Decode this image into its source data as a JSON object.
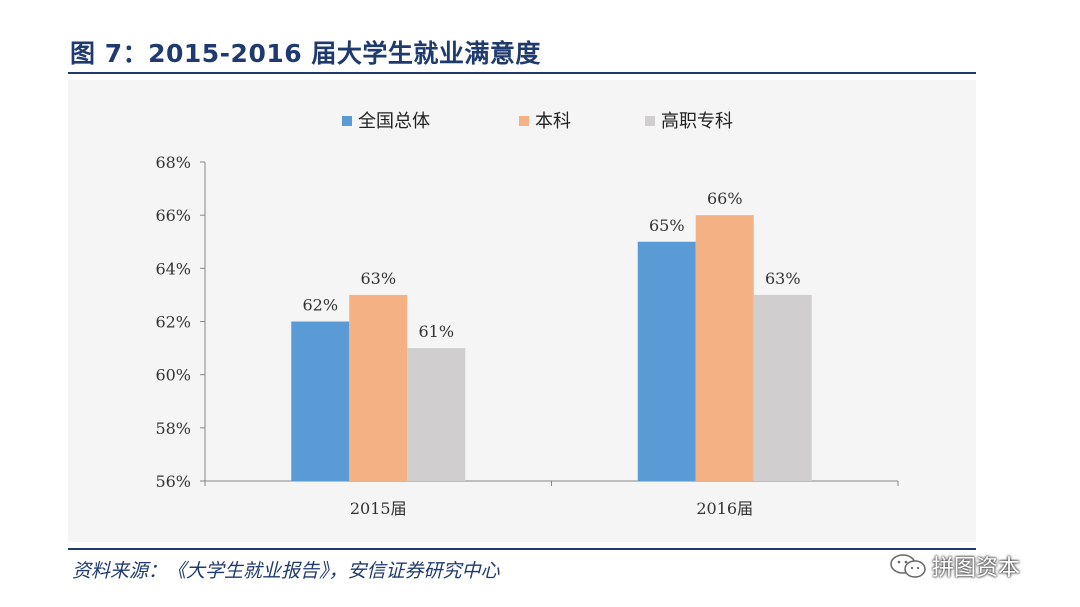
{
  "header": {
    "title": "图 7：2015-2016 届大学生就业满意度"
  },
  "footer": {
    "source": "资料来源：《大学生就业报告》，安信证券研究中心",
    "watermark": "拼图资本"
  },
  "chart_data": {
    "type": "bar",
    "title": "",
    "categories": [
      "2015届",
      "2016届"
    ],
    "series": [
      {
        "name": "全国总体",
        "values": [
          62,
          65
        ],
        "labels": [
          "62%",
          "65%"
        ],
        "color": "#5b9bd5"
      },
      {
        "name": "本科",
        "values": [
          63,
          66
        ],
        "labels": [
          "63%",
          "66%"
        ],
        "color": "#f4b183"
      },
      {
        "name": "高职专科",
        "values": [
          61,
          63
        ],
        "labels": [
          "61%",
          "63%"
        ],
        "color": "#d0cece"
      }
    ],
    "ylim": [
      56,
      68
    ],
    "yticks": [
      56,
      58,
      60,
      62,
      64,
      66,
      68
    ],
    "ytick_labels": [
      "56%",
      "58%",
      "60%",
      "62%",
      "64%",
      "66%",
      "68%"
    ],
    "legend_position": "top",
    "grid": false,
    "xlabel": "",
    "ylabel": ""
  }
}
